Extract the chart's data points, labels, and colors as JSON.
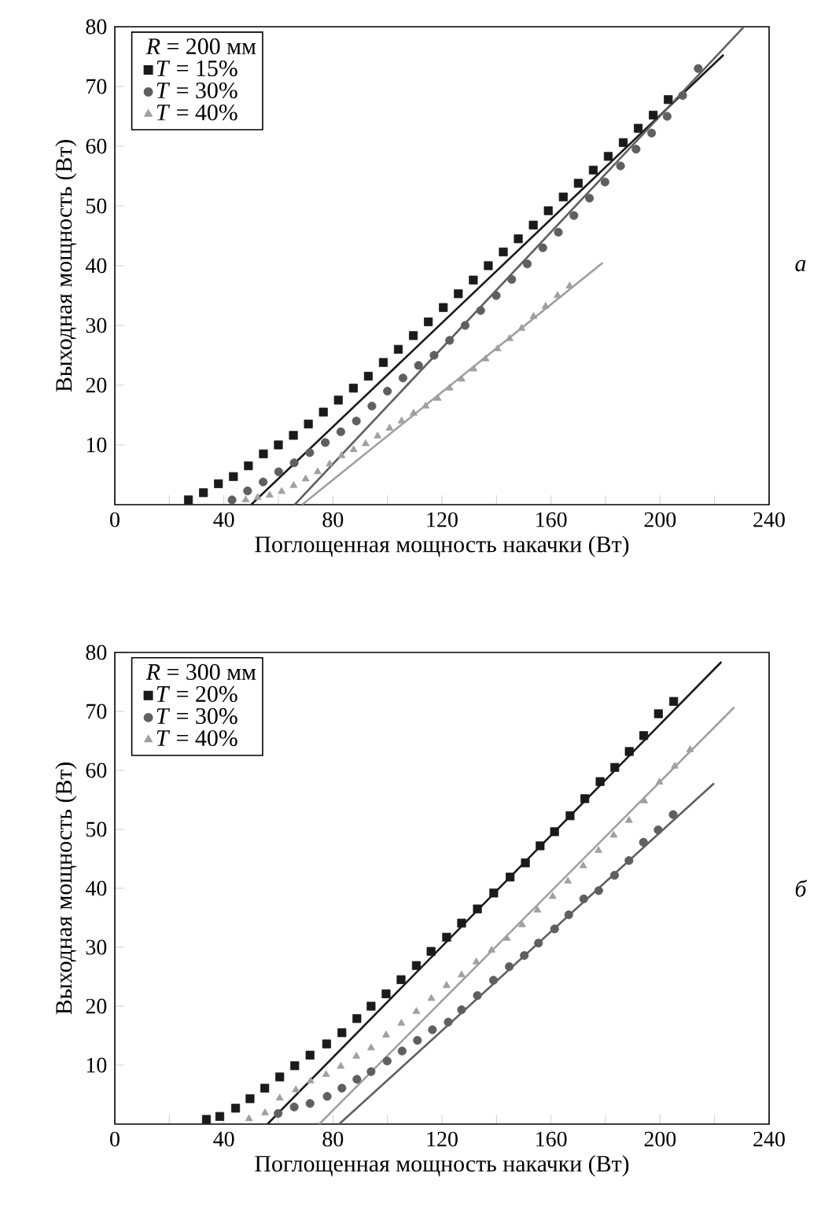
{
  "chart_data": [
    {
      "type": "scatter",
      "xlabel": "Поглощенная мощность накачки (Вт)",
      "ylabel": "Выходная мощность (Вт)",
      "legend_title": "*R* = 200 мм",
      "annotations": [
        "а"
      ],
      "legend": "top left",
      "grid": false,
      "xlim": [
        0,
        240
      ],
      "ylim": [
        0,
        80
      ],
      "xticks": [
        0,
        {
          "value": 20,
          "label": null
        },
        40,
        {
          "value": 60,
          "label": null
        },
        80,
        {
          "value": 100,
          "label": null
        },
        120,
        {
          "value": 140,
          "label": null
        },
        160,
        {
          "value": 180,
          "label": null
        },
        200,
        {
          "value": 220,
          "label": null
        },
        240
      ],
      "yticks": [
        10,
        20,
        30,
        40,
        50,
        60,
        70,
        80
      ],
      "series": [
        {
          "name": "*T* = 15%",
          "color": "#1a1a1a",
          "marker": "square",
          "x": [
            27,
            32.5,
            38,
            43.5,
            49,
            54.5,
            60,
            65.5,
            71,
            76.5,
            82,
            87.5,
            93,
            98.5,
            104,
            109.5,
            115,
            120.5,
            126,
            131.5,
            137,
            142.5,
            148,
            153.5,
            159,
            164.5,
            170,
            175.5,
            181,
            186.5,
            192,
            197.5,
            203
          ],
          "values": [
            0.8,
            2,
            3.5,
            4.7,
            6.5,
            8.5,
            10,
            11.6,
            13.5,
            15.5,
            17.5,
            19.5,
            21.5,
            23.8,
            26,
            28.3,
            30.6,
            33,
            35.3,
            37.6,
            40,
            42.3,
            44.5,
            46.8,
            49.2,
            51.5,
            53.8,
            56,
            58.3,
            60.6,
            63,
            65.2,
            67.8
          ]
        },
        {
          "name": "*T* = 30%",
          "color": "#5f5f5f",
          "marker": "circle",
          "x": [
            43,
            48.7,
            54.4,
            60.1,
            65.8,
            71.5,
            77.2,
            82.9,
            88.6,
            94.3,
            100,
            105.7,
            111.4,
            117.1,
            122.8,
            128.5,
            134.2,
            139.9,
            145.6,
            151.3,
            157,
            162.7,
            168.4,
            174.1,
            179.8,
            185.5,
            191.2,
            196.9,
            202.6,
            208.3,
            214
          ],
          "values": [
            0.8,
            2.3,
            3.8,
            5.5,
            7,
            8.7,
            10.4,
            12.2,
            14,
            16.5,
            19,
            21.2,
            23.3,
            25,
            27.5,
            30,
            32.5,
            35,
            37.7,
            40.3,
            43,
            45.6,
            48.4,
            51.3,
            54,
            56.7,
            59.5,
            62.2,
            65,
            68.5,
            73
          ]
        },
        {
          "name": "*T* = 40%",
          "color": "#a0a0a0",
          "marker": "triangle",
          "x": [
            48,
            52.4,
            56.8,
            61.2,
            65.6,
            70,
            74.4,
            78.8,
            83.2,
            87.6,
            92,
            96.4,
            100.8,
            105.2,
            109.6,
            114,
            118.4,
            122.8,
            127.2,
            131.6,
            136,
            140.4,
            144.8,
            149.2,
            153.6,
            158,
            162.4,
            166.8
          ],
          "values": [
            0.8,
            1.2,
            1.6,
            2.2,
            3.2,
            4.3,
            5.5,
            6.8,
            8.2,
            9.2,
            10.2,
            11.5,
            12.8,
            14,
            15.3,
            16.5,
            17.8,
            19.5,
            21,
            22.7,
            24.4,
            26.1,
            27.8,
            29.5,
            31.5,
            33.2,
            35,
            36.6
          ]
        },
        {
          "type": "line",
          "color": "#1a1a1a",
          "x": [
            50,
            223.3
          ],
          "values": [
            0,
            75.3
          ]
        },
        {
          "type": "line",
          "color": "#5f5f5f",
          "x": [
            66,
            230.8
          ],
          "values": [
            0,
            80
          ]
        },
        {
          "type": "line",
          "color": "#a0a0a0",
          "x": [
            68.7,
            179
          ],
          "values": [
            0,
            40.5
          ]
        }
      ]
    },
    {
      "type": "scatter",
      "xlabel": "Поглощенная мощность накачки (Вт)",
      "ylabel": "Выходная мощность (Вт)",
      "legend_title": "*R* = 300 мм",
      "annotations": [
        "б"
      ],
      "legend": "top left",
      "grid": false,
      "xlim": [
        0,
        240
      ],
      "ylim": [
        0,
        80
      ],
      "xticks": [
        0,
        {
          "value": 20,
          "label": null
        },
        40,
        {
          "value": 60,
          "label": null
        },
        80,
        {
          "value": 100,
          "label": null
        },
        120,
        {
          "value": 140,
          "label": null
        },
        160,
        {
          "value": 180,
          "label": null
        },
        200,
        {
          "value": 220,
          "label": null
        },
        240
      ],
      "yticks": [
        10,
        20,
        30,
        40,
        50,
        60,
        70,
        80
      ],
      "series": [
        {
          "name": "*T* = 20%",
          "color": "#1a1a1a",
          "marker": "square",
          "x": [
            33.6,
            38.5,
            44.3,
            49.6,
            55,
            60.5,
            66,
            71.6,
            77.7,
            83.3,
            88.8,
            94,
            99.5,
            105,
            110.6,
            116,
            121.7,
            127.2,
            133,
            139,
            145,
            150.6,
            156,
            161.3,
            167,
            172.4,
            178,
            183.4,
            188.7,
            194,
            199.4,
            205
          ],
          "values": [
            0.8,
            1.3,
            2.7,
            4.3,
            6.1,
            8,
            9.9,
            11.7,
            13.6,
            15.5,
            17.9,
            20,
            22.1,
            24.5,
            26.9,
            29.3,
            31.7,
            34.1,
            36.5,
            39.2,
            41.9,
            44.3,
            47.2,
            49.6,
            52.3,
            55.2,
            58.1,
            60.5,
            63.2,
            65.9,
            69.6,
            71.7
          ]
        },
        {
          "name": "*T* = 30%",
          "color": "#5f5f5f",
          "marker": "circle",
          "x": [
            59.9,
            65.8,
            71.6,
            77.9,
            83.3,
            88.8,
            94,
            99.9,
            105.4,
            111,
            116.5,
            122.3,
            127.2,
            133,
            138.9,
            144.7,
            150.2,
            155.4,
            161.3,
            166.5,
            172,
            177.5,
            183.3,
            188.6,
            193.9,
            199.3,
            204.8
          ],
          "values": [
            1.8,
            2.9,
            3.5,
            4.7,
            6.1,
            7.6,
            8.9,
            10.7,
            12.4,
            14.2,
            16,
            17.3,
            19.4,
            21.8,
            24.4,
            26.7,
            28.6,
            30.7,
            33.1,
            35.5,
            38.2,
            39.6,
            42.2,
            44.7,
            47.8,
            49.9,
            52.5
          ]
        },
        {
          "name": "*T* = 40%",
          "color": "#a0a0a0",
          "marker": "triangle",
          "x": [
            49.2,
            55.1,
            60.5,
            66.4,
            71.8,
            77.5,
            82.9,
            88.6,
            94,
            99.5,
            105.1,
            110.6,
            116.1,
            121.7,
            127.2,
            132.6,
            138.2,
            143.8,
            149.4,
            155,
            160.6,
            166.2,
            171.8,
            177.4,
            183,
            188.6,
            194.2,
            199.8,
            205.4,
            211
          ],
          "values": [
            0.9,
            1.9,
            4.4,
            5.8,
            7.3,
            8.4,
            9.8,
            11.5,
            12.9,
            15.1,
            17.1,
            19.1,
            21.3,
            23.5,
            25.3,
            27.5,
            29.5,
            31.5,
            33.8,
            36.3,
            38.6,
            41.2,
            43.8,
            46.4,
            49,
            51.5,
            54.8,
            58,
            60.7,
            63.5
          ]
        },
        {
          "type": "line",
          "color": "#1a1a1a",
          "x": [
            56,
            222.5
          ],
          "values": [
            0,
            78.4
          ]
        },
        {
          "type": "line",
          "color": "#5f5f5f",
          "x": [
            82.3,
            219.8
          ],
          "values": [
            0,
            57.8
          ]
        },
        {
          "type": "line",
          "color": "#a0a0a0",
          "x": [
            75,
            227.2
          ],
          "values": [
            0,
            70.7
          ]
        }
      ]
    }
  ]
}
